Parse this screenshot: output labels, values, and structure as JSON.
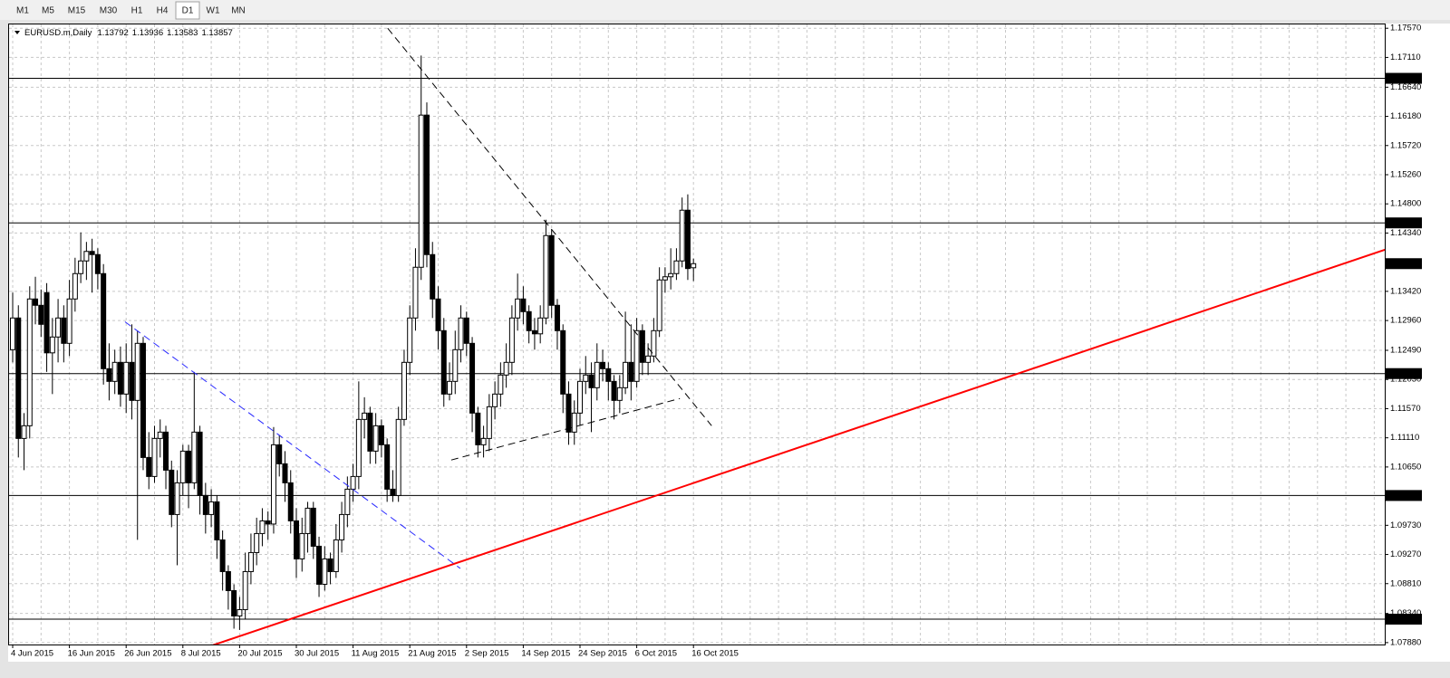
{
  "toolbar": {
    "timeframes": [
      "M1",
      "M5",
      "M15",
      "M30",
      "H1",
      "H4",
      "D1",
      "W1",
      "MN"
    ]
  },
  "chart_data": {
    "type": "candlestick",
    "title": "EURUSD.m,Daily",
    "categories": [
      "4 Jun 2015",
      null,
      null,
      null,
      null,
      null,
      null,
      null,
      null,
      null,
      "16 Jun 2015",
      null,
      null,
      null,
      null,
      null,
      null,
      null,
      null,
      null,
      "26 Jun 2015",
      null,
      null,
      null,
      null,
      null,
      null,
      null,
      null,
      null,
      "8 Jul 2015",
      null,
      null,
      null,
      null,
      null,
      null,
      null,
      null,
      null,
      "20 Jul 2015",
      null,
      null,
      null,
      null,
      null,
      null,
      null,
      null,
      null,
      "30 Jul 2015",
      null,
      null,
      null,
      null,
      null,
      null,
      null,
      null,
      null,
      "11 Aug 2015",
      null,
      null,
      null,
      null,
      null,
      null,
      null,
      null,
      null,
      "21 Aug 2015",
      null,
      null,
      null,
      null,
      null,
      null,
      null,
      null,
      null,
      "2 Sep 2015",
      null,
      null,
      null,
      null,
      null,
      null,
      null,
      null,
      null,
      "14 Sep 2015",
      null,
      null,
      null,
      null,
      null,
      null,
      null,
      null,
      null,
      "24 Sep 2015",
      null,
      null,
      null,
      null,
      null,
      null,
      null,
      null,
      null,
      "6 Oct 2015",
      null,
      null,
      null,
      null,
      null,
      null,
      null,
      null,
      null,
      "16 Oct 2015"
    ],
    "ohlc": [
      [
        1.125,
        1.134,
        1.123,
        1.13
      ],
      [
        1.13,
        1.132,
        1.108,
        1.111
      ],
      [
        1.111,
        1.115,
        1.106,
        1.113
      ],
      [
        1.113,
        1.135,
        1.111,
        1.133
      ],
      [
        1.133,
        1.1365,
        1.129,
        1.132
      ],
      [
        1.132,
        1.1345,
        1.127,
        1.129
      ],
      [
        1.134,
        1.1355,
        1.1215,
        1.1245
      ],
      [
        1.1245,
        1.13,
        1.118,
        1.127
      ],
      [
        1.127,
        1.133,
        1.123,
        1.13
      ],
      [
        1.13,
        1.132,
        1.123,
        1.126
      ],
      [
        1.126,
        1.136,
        1.124,
        1.133
      ],
      [
        1.133,
        1.1395,
        1.131,
        1.137
      ],
      [
        1.137,
        1.1435,
        1.1355,
        1.139
      ],
      [
        1.139,
        1.142,
        1.136,
        1.1405
      ],
      [
        1.1405,
        1.1425,
        1.134,
        1.14
      ],
      [
        1.14,
        1.141,
        1.1345,
        1.137
      ],
      [
        1.137,
        1.1385,
        1.1195,
        1.122
      ],
      [
        1.122,
        1.126,
        1.117,
        1.12
      ],
      [
        1.12,
        1.125,
        1.118,
        1.123
      ],
      [
        1.123,
        1.1255,
        1.116,
        1.118
      ],
      [
        1.118,
        1.126,
        1.115,
        1.123
      ],
      [
        1.123,
        1.129,
        1.114,
        1.117
      ],
      [
        1.117,
        1.128,
        1.095,
        1.126
      ],
      [
        1.126,
        1.127,
        1.106,
        1.108
      ],
      [
        1.108,
        1.112,
        1.103,
        1.105
      ],
      [
        1.105,
        1.113,
        1.104,
        1.111
      ],
      [
        1.111,
        1.114,
        1.108,
        1.112
      ],
      [
        1.112,
        1.113,
        1.103,
        1.106
      ],
      [
        1.106,
        1.1075,
        1.097,
        1.099
      ],
      [
        1.099,
        1.106,
        1.091,
        1.104
      ],
      [
        1.104,
        1.11,
        1.102,
        1.109
      ],
      [
        1.109,
        1.11,
        1.1,
        1.104
      ],
      [
        1.104,
        1.1215,
        1.103,
        1.112
      ],
      [
        1.112,
        1.113,
        1.099,
        1.102
      ],
      [
        1.102,
        1.104,
        1.096,
        1.099
      ],
      [
        1.099,
        1.103,
        1.097,
        1.101
      ],
      [
        1.101,
        1.102,
        1.092,
        1.095
      ],
      [
        1.095,
        1.0965,
        1.087,
        1.09
      ],
      [
        1.09,
        1.091,
        1.084,
        1.087
      ],
      [
        1.087,
        1.088,
        1.081,
        1.083
      ],
      [
        1.083,
        1.086,
        1.0808,
        1.084
      ],
      [
        1.084,
        1.093,
        1.0825,
        1.09
      ],
      [
        1.09,
        1.096,
        1.088,
        1.093
      ],
      [
        1.093,
        1.0985,
        1.091,
        1.096
      ],
      [
        1.096,
        1.1,
        1.094,
        1.098
      ],
      [
        1.098,
        1.0995,
        1.095,
        1.0975
      ],
      [
        1.0975,
        1.1128,
        1.096,
        1.11
      ],
      [
        1.11,
        1.1115,
        1.105,
        1.107
      ],
      [
        1.107,
        1.109,
        1.101,
        1.104
      ],
      [
        1.104,
        1.106,
        1.096,
        1.098
      ],
      [
        1.098,
        1.1,
        1.089,
        1.092
      ],
      [
        1.092,
        1.0985,
        1.09,
        1.096
      ],
      [
        1.096,
        1.101,
        1.093,
        1.1
      ],
      [
        1.1,
        1.101,
        1.092,
        1.094
      ],
      [
        1.094,
        1.0955,
        1.086,
        1.088
      ],
      [
        1.088,
        1.094,
        1.087,
        1.092
      ],
      [
        1.092,
        1.093,
        1.088,
        1.09
      ],
      [
        1.09,
        1.0975,
        1.089,
        1.095
      ],
      [
        1.095,
        1.101,
        1.093,
        1.099
      ],
      [
        1.099,
        1.105,
        1.097,
        1.103
      ],
      [
        1.103,
        1.107,
        1.101,
        1.105
      ],
      [
        1.105,
        1.12,
        1.103,
        1.114
      ],
      [
        1.114,
        1.1175,
        1.111,
        1.115
      ],
      [
        1.115,
        1.116,
        1.107,
        1.109
      ],
      [
        1.109,
        1.115,
        1.107,
        1.113
      ],
      [
        1.113,
        1.114,
        1.108,
        1.11
      ],
      [
        1.11,
        1.111,
        1.101,
        1.103
      ],
      [
        1.103,
        1.106,
        1.101,
        1.102
      ],
      [
        1.102,
        1.116,
        1.101,
        1.114
      ],
      [
        1.114,
        1.125,
        1.113,
        1.123
      ],
      [
        1.123,
        1.132,
        1.121,
        1.13
      ],
      [
        1.13,
        1.141,
        1.128,
        1.138
      ],
      [
        1.138,
        1.1714,
        1.136,
        1.162
      ],
      [
        1.162,
        1.164,
        1.138,
        1.14
      ],
      [
        1.14,
        1.142,
        1.13,
        1.133
      ],
      [
        1.133,
        1.135,
        1.125,
        1.128
      ],
      [
        1.128,
        1.13,
        1.116,
        1.118
      ],
      [
        1.118,
        1.123,
        1.117,
        1.12
      ],
      [
        1.12,
        1.128,
        1.118,
        1.125
      ],
      [
        1.125,
        1.132,
        1.123,
        1.13
      ],
      [
        1.13,
        1.131,
        1.124,
        1.126
      ],
      [
        1.126,
        1.127,
        1.112,
        1.115
      ],
      [
        1.115,
        1.116,
        1.108,
        1.11
      ],
      [
        1.11,
        1.113,
        1.108,
        1.111
      ],
      [
        1.111,
        1.118,
        1.109,
        1.116
      ],
      [
        1.116,
        1.12,
        1.114,
        1.118
      ],
      [
        1.118,
        1.123,
        1.116,
        1.121
      ],
      [
        1.121,
        1.126,
        1.119,
        1.123
      ],
      [
        1.123,
        1.132,
        1.121,
        1.13
      ],
      [
        1.13,
        1.137,
        1.128,
        1.133
      ],
      [
        1.133,
        1.135,
        1.129,
        1.131
      ],
      [
        1.131,
        1.132,
        1.126,
        1.128
      ],
      [
        1.128,
        1.13,
        1.125,
        1.1275
      ],
      [
        1.1275,
        1.132,
        1.126,
        1.13
      ],
      [
        1.13,
        1.1455,
        1.129,
        1.143
      ],
      [
        1.143,
        1.144,
        1.13,
        1.132
      ],
      [
        1.132,
        1.133,
        1.125,
        1.128
      ],
      [
        1.128,
        1.129,
        1.115,
        1.118
      ],
      [
        1.118,
        1.12,
        1.11,
        1.112
      ],
      [
        1.112,
        1.117,
        1.11,
        1.115
      ],
      [
        1.115,
        1.122,
        1.113,
        1.12
      ],
      [
        1.12,
        1.124,
        1.118,
        1.121
      ],
      [
        1.121,
        1.123,
        1.112,
        1.119
      ],
      [
        1.119,
        1.126,
        1.117,
        1.123
      ],
      [
        1.123,
        1.125,
        1.12,
        1.122
      ],
      [
        1.122,
        1.123,
        1.117,
        1.12
      ],
      [
        1.12,
        1.121,
        1.114,
        1.117
      ],
      [
        1.117,
        1.121,
        1.115,
        1.119
      ],
      [
        1.119,
        1.131,
        1.118,
        1.123
      ],
      [
        1.123,
        1.129,
        1.117,
        1.12
      ],
      [
        1.12,
        1.13,
        1.119,
        1.128
      ],
      [
        1.128,
        1.129,
        1.121,
        1.123
      ],
      [
        1.123,
        1.126,
        1.121,
        1.124
      ],
      [
        1.124,
        1.13,
        1.123,
        1.128
      ],
      [
        1.128,
        1.138,
        1.127,
        1.136
      ],
      [
        1.136,
        1.138,
        1.134,
        1.1365
      ],
      [
        1.1365,
        1.141,
        1.1345,
        1.137
      ],
      [
        1.137,
        1.141,
        1.136,
        1.139
      ],
      [
        1.139,
        1.149,
        1.138,
        1.147
      ],
      [
        1.147,
        1.1495,
        1.136,
        1.1378
      ],
      [
        1.13792,
        1.13936,
        1.13583,
        1.13857
      ]
    ],
    "ylim": [
      1.0785,
      1.1763
    ],
    "yticks": [
      {
        "value": 1.1757,
        "label": "1.17570"
      },
      {
        "value": 1.1711,
        "label": "1.17110"
      },
      {
        "value": 1.1664,
        "label": "1.16640"
      },
      {
        "value": 1.1618,
        "label": "1.16180"
      },
      {
        "value": 1.1572,
        "label": "1.15720"
      },
      {
        "value": 1.1526,
        "label": "1.15260"
      },
      {
        "value": 1.148,
        "label": "1.14800"
      },
      {
        "value": 1.1434,
        "label": "1.14340"
      },
      {
        "value": 1.1342,
        "label": "1.13420"
      },
      {
        "value": 1.1296,
        "label": "1.12960"
      },
      {
        "value": 1.1249,
        "label": "1.12490"
      },
      {
        "value": 1.1203,
        "label": "1.12030"
      },
      {
        "value": 1.1157,
        "label": "1.11570"
      },
      {
        "value": 1.1111,
        "label": "1.11110"
      },
      {
        "value": 1.1065,
        "label": "1.10650"
      },
      {
        "value": 1.0973,
        "label": "1.09730"
      },
      {
        "value": 1.0927,
        "label": "1.09270"
      },
      {
        "value": 1.0881,
        "label": "1.08810"
      },
      {
        "value": 1.0834,
        "label": "1.08340"
      },
      {
        "value": 1.0788,
        "label": "1.07880"
      }
    ],
    "grid": true,
    "bull_color": "#ffffff",
    "bear_color": "#000000",
    "levels": [
      {
        "value": 1.1678,
        "label": "1.16780"
      },
      {
        "value": 1.145,
        "label": "1.14500"
      },
      {
        "value": 1.12123,
        "label": "1.12123"
      },
      {
        "value": 1.102,
        "label": "1.10200"
      },
      {
        "value": 1.0825,
        "label": "1.08250"
      }
    ],
    "trendlines": [
      {
        "color": "#ff0000",
        "dashed": false,
        "points": [
          [
            34,
            1.078
          ],
          [
            242,
            1.1408
          ]
        ]
      },
      {
        "color": "#2a2aff",
        "dashed": true,
        "points": [
          [
            19.8,
            1.1294
          ],
          [
            78.9,
            1.0905
          ]
        ]
      },
      {
        "color": "#000000",
        "dashed": true,
        "points": [
          [
            66.1,
            1.1757
          ],
          [
            123.2,
            1.113
          ]
        ]
      },
      {
        "color": "#000000",
        "dashed": true,
        "points": [
          [
            77.3,
            1.1076
          ],
          [
            117.6,
            1.1173
          ]
        ]
      }
    ]
  }
}
